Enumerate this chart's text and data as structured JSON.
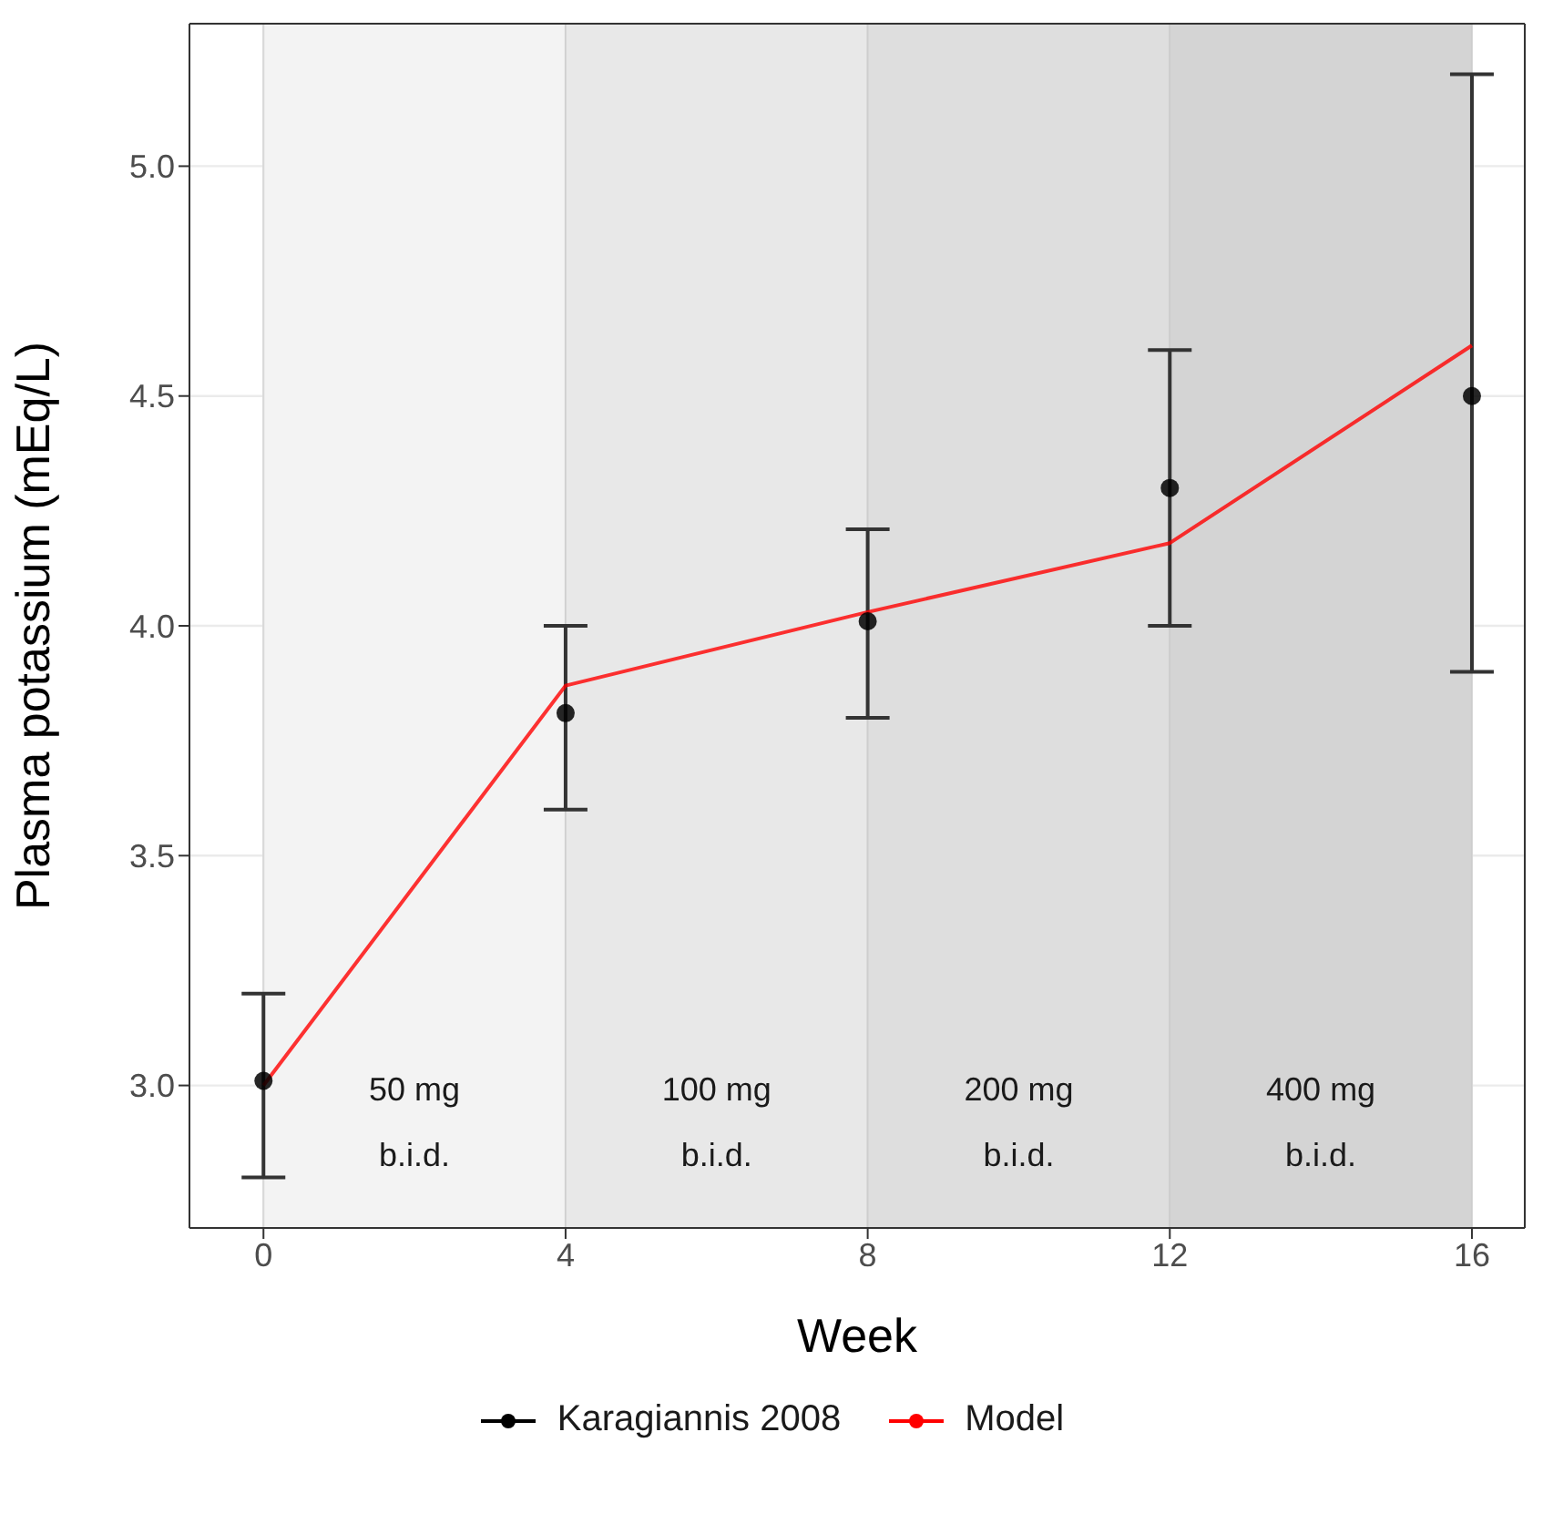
{
  "chart_data": {
    "type": "line",
    "xlabel": "Week",
    "ylabel": "Plasma potassium (mEq/L)",
    "xlim": [
      -0.98,
      16.7
    ],
    "xticks": [
      0,
      4,
      8,
      12,
      16
    ],
    "ylim": [
      2.69,
      5.31
    ],
    "yticks": [
      {
        "value": 3,
        "label": "3.0"
      },
      {
        "value": 3.5,
        "label": "3.5"
      },
      {
        "value": 4,
        "label": "4.0"
      },
      {
        "value": 4.5,
        "label": "4.5"
      },
      {
        "value": 5,
        "label": "5.0"
      }
    ],
    "grid": true,
    "legend": "bottom",
    "bands": [
      {
        "axis": "x",
        "from": 0,
        "to": 4,
        "label": "50 mg\nb.i.d.",
        "color": "#f3f3f3"
      },
      {
        "axis": "x",
        "from": 4,
        "to": 8,
        "label": "100 mg\nb.i.d.",
        "color": "#e8e8e8"
      },
      {
        "axis": "x",
        "from": 8,
        "to": 12,
        "label": "200 mg\nb.i.d.",
        "color": "#dedede"
      },
      {
        "axis": "x",
        "from": 12,
        "to": 16,
        "label": "400 mg\nb.i.d.",
        "color": "#d4d4d4"
      }
    ],
    "series": [
      {
        "name": "Karagiannis 2008",
        "type": "scatter",
        "marker": "circle",
        "color": "#000000",
        "x": [
          0,
          4,
          8,
          12,
          16
        ],
        "values": [
          3.01,
          3.81,
          4.01,
          4.3,
          4.5
        ],
        "errors": [
          [
            2.8,
            3.2
          ],
          [
            3.6,
            4.0
          ],
          [
            3.8,
            4.21
          ],
          [
            4.0,
            4.6
          ],
          [
            3.9,
            5.2
          ]
        ]
      },
      {
        "name": "Model",
        "marker": "none",
        "line_style": "solid",
        "color": "#ff0000",
        "x": [
          0,
          4,
          8,
          12,
          16
        ],
        "values": [
          3.0,
          3.87,
          4.03,
          4.18,
          4.61
        ]
      }
    ]
  }
}
